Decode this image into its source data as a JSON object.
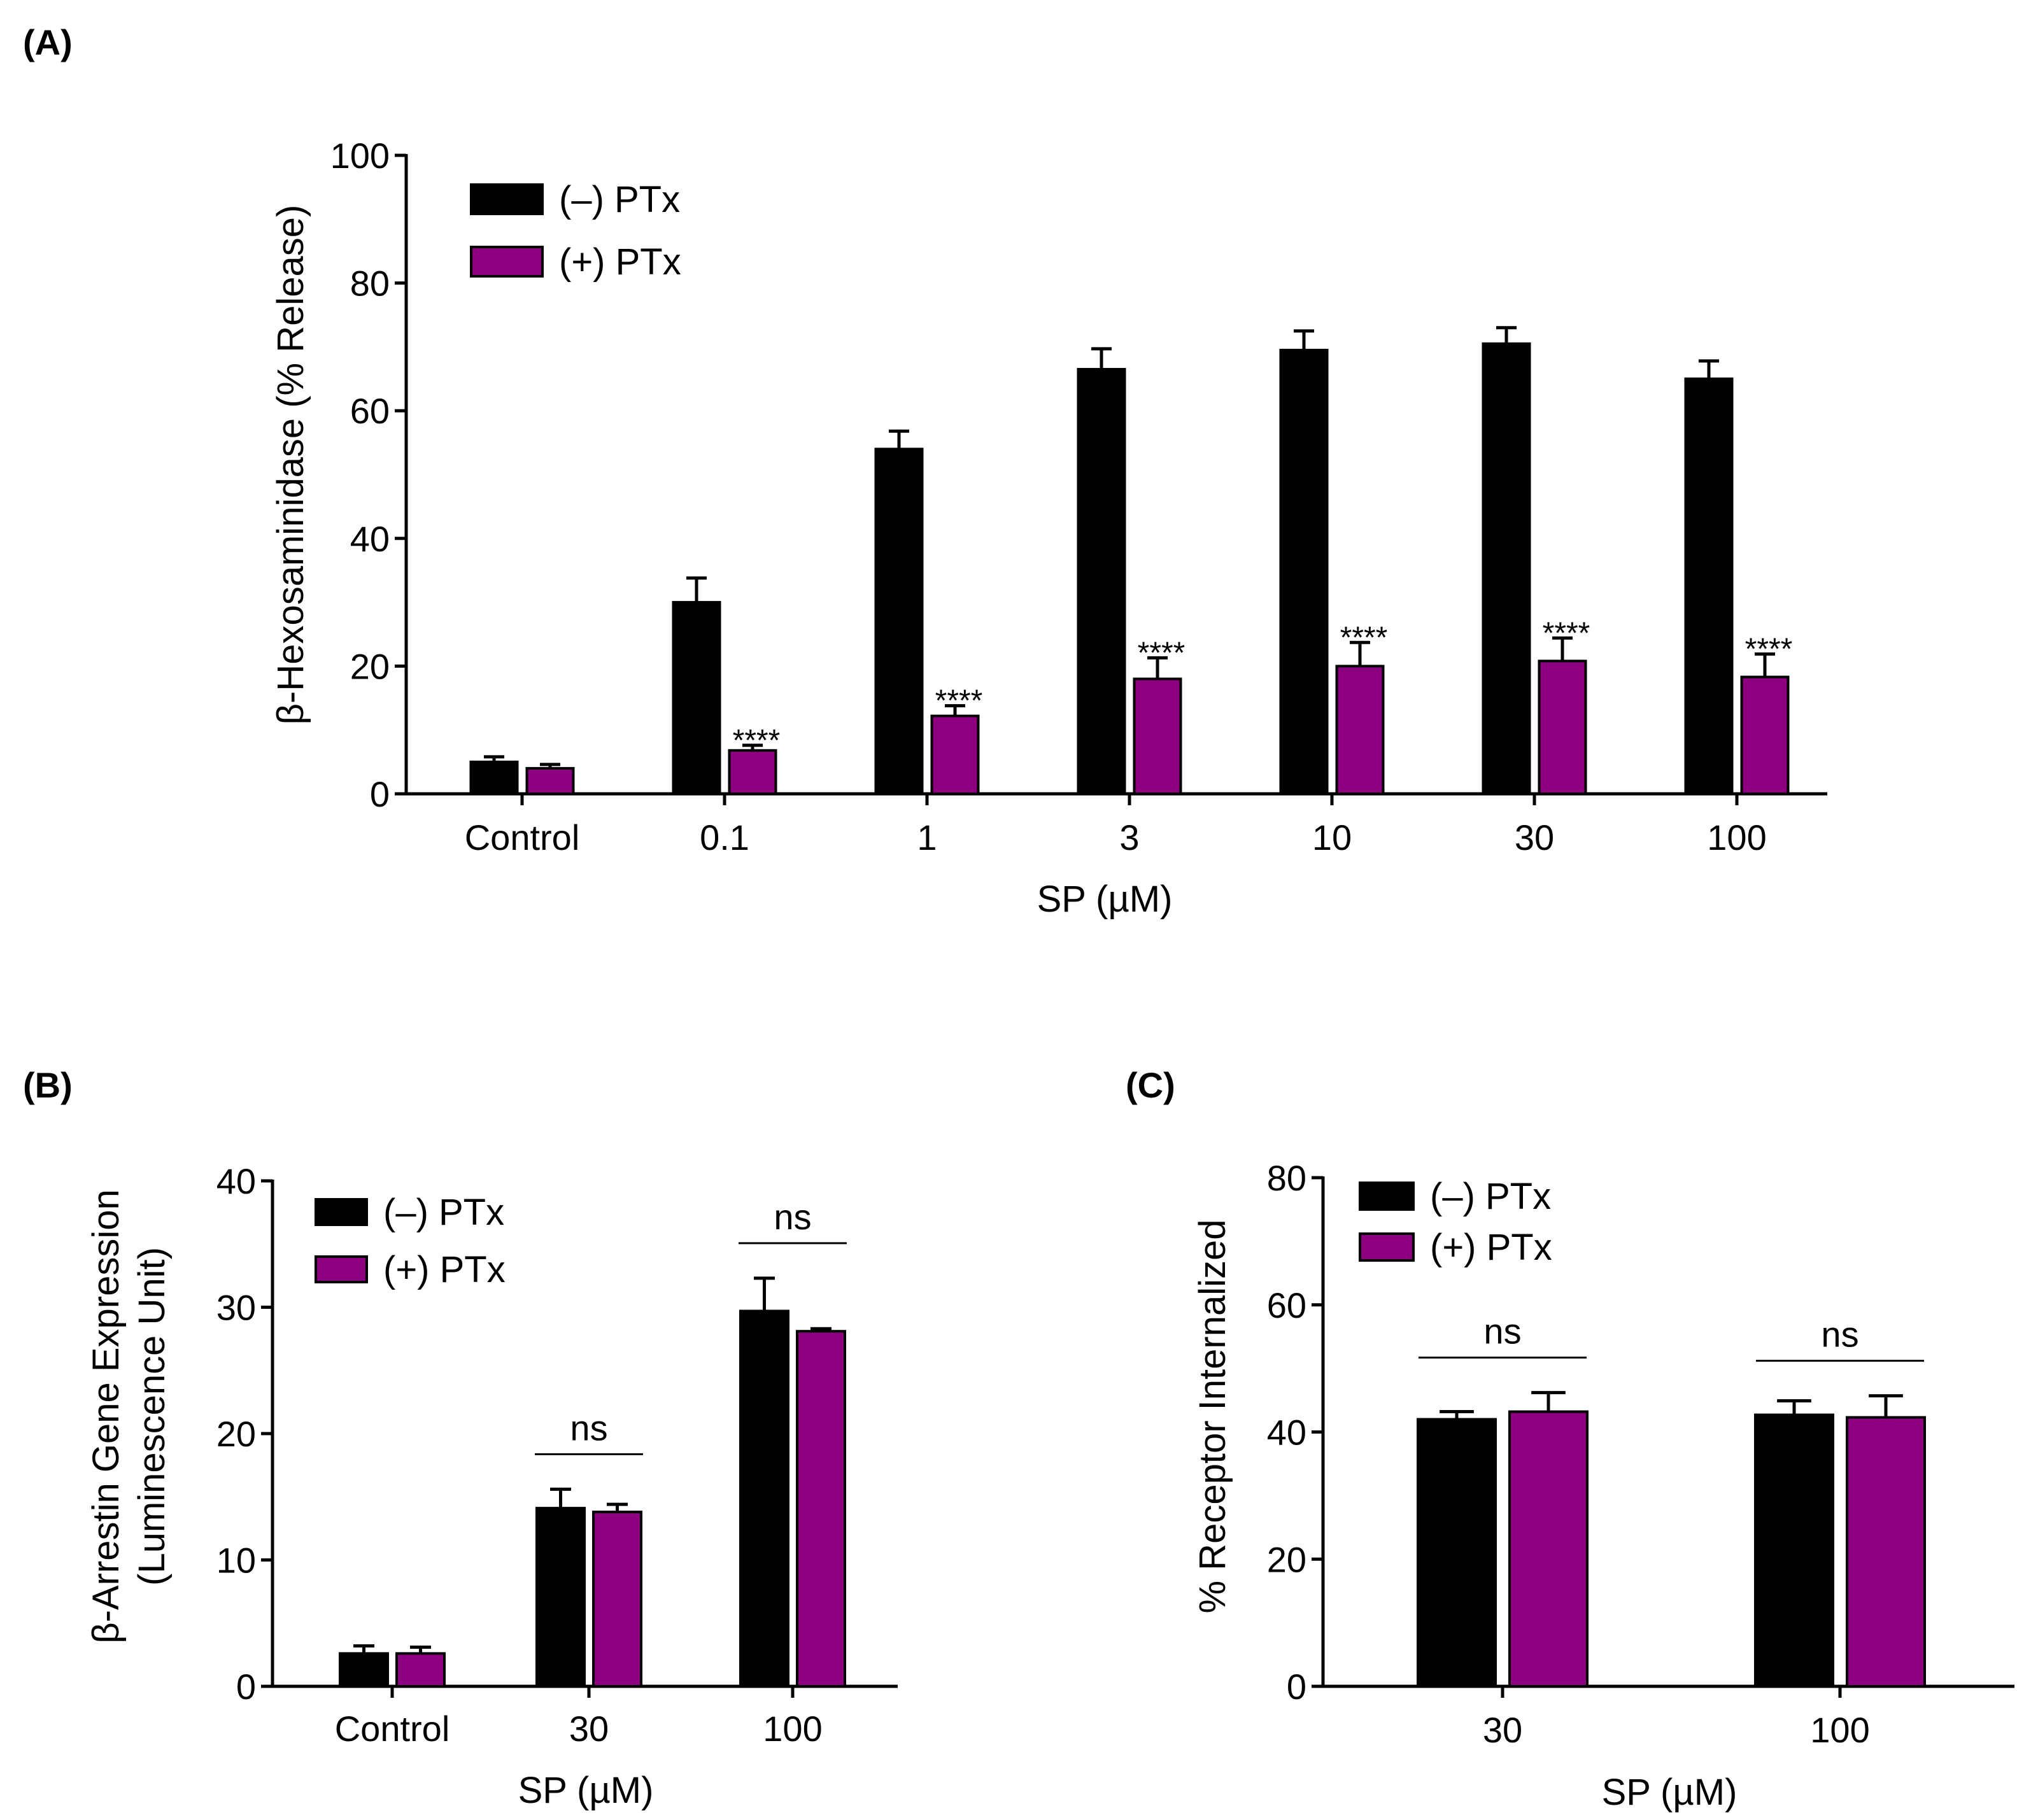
{
  "colors": {
    "minus_ptx": "#000000",
    "plus_ptx": "#8c0080"
  },
  "chart_data": [
    {
      "panel": "(A)",
      "type": "bar",
      "xlabel": "SP (µM)",
      "ylabel": "β-Hexosaminidase (% Release)",
      "ylim": [
        0,
        100
      ],
      "yticks": [
        "0",
        "20",
        "40",
        "60",
        "80",
        "100"
      ],
      "categories": [
        "Control",
        "0.1",
        "1",
        "3",
        "10",
        "30",
        "100"
      ],
      "series": [
        {
          "name": "(–) PTx",
          "values": [
            5,
            30,
            54,
            66.5,
            69.5,
            70.5,
            65
          ],
          "errors": [
            0.8,
            3.8,
            2.8,
            3.2,
            3,
            2.5,
            2.8
          ]
        },
        {
          "name": "(+) PTx",
          "values": [
            4,
            6.8,
            12.2,
            18,
            20,
            20.8,
            18.3
          ],
          "errors": [
            0.6,
            0.8,
            1.6,
            3.3,
            3.7,
            3.6,
            3.6
          ]
        }
      ],
      "annotations": [
        "",
        "****",
        "****",
        "****",
        "****",
        "****",
        "****"
      ],
      "legend": "top-left",
      "grid": false
    },
    {
      "panel": "(B)",
      "type": "bar",
      "xlabel": "SP (µM)",
      "ylabel": [
        "β-Arrestin Gene Expression",
        "(Luminescence Unit)"
      ],
      "ylim": [
        0,
        40
      ],
      "yticks": [
        "0",
        "10",
        "20",
        "30",
        "40"
      ],
      "categories": [
        "Control",
        "30",
        "100"
      ],
      "series": [
        {
          "name": "(–) PTx",
          "values": [
            2.6,
            14.1,
            29.7
          ],
          "errors": [
            0.6,
            1.5,
            2.6
          ]
        },
        {
          "name": "(+) PTx",
          "values": [
            2.6,
            13.8,
            28.1
          ],
          "errors": [
            0.5,
            0.6,
            0.2
          ]
        }
      ],
      "annotations": [
        "",
        "ns",
        "ns"
      ],
      "legend": "top-left",
      "grid": false
    },
    {
      "panel": "(C)",
      "type": "bar",
      "xlabel": "SP (µM)",
      "ylabel": "% Receptor Internalized",
      "ylim": [
        0,
        80
      ],
      "yticks": [
        "0",
        "20",
        "40",
        "60",
        "80"
      ],
      "categories": [
        "30",
        "100"
      ],
      "series": [
        {
          "name": "(–) PTx",
          "values": [
            42,
            42.7
          ],
          "errors": [
            1.2,
            2.2
          ]
        },
        {
          "name": "(+) PTx",
          "values": [
            43.2,
            42.3
          ],
          "errors": [
            3,
            3.4
          ]
        }
      ],
      "annotations": [
        "ns",
        "ns"
      ],
      "legend": "top-left",
      "grid": false
    }
  ]
}
